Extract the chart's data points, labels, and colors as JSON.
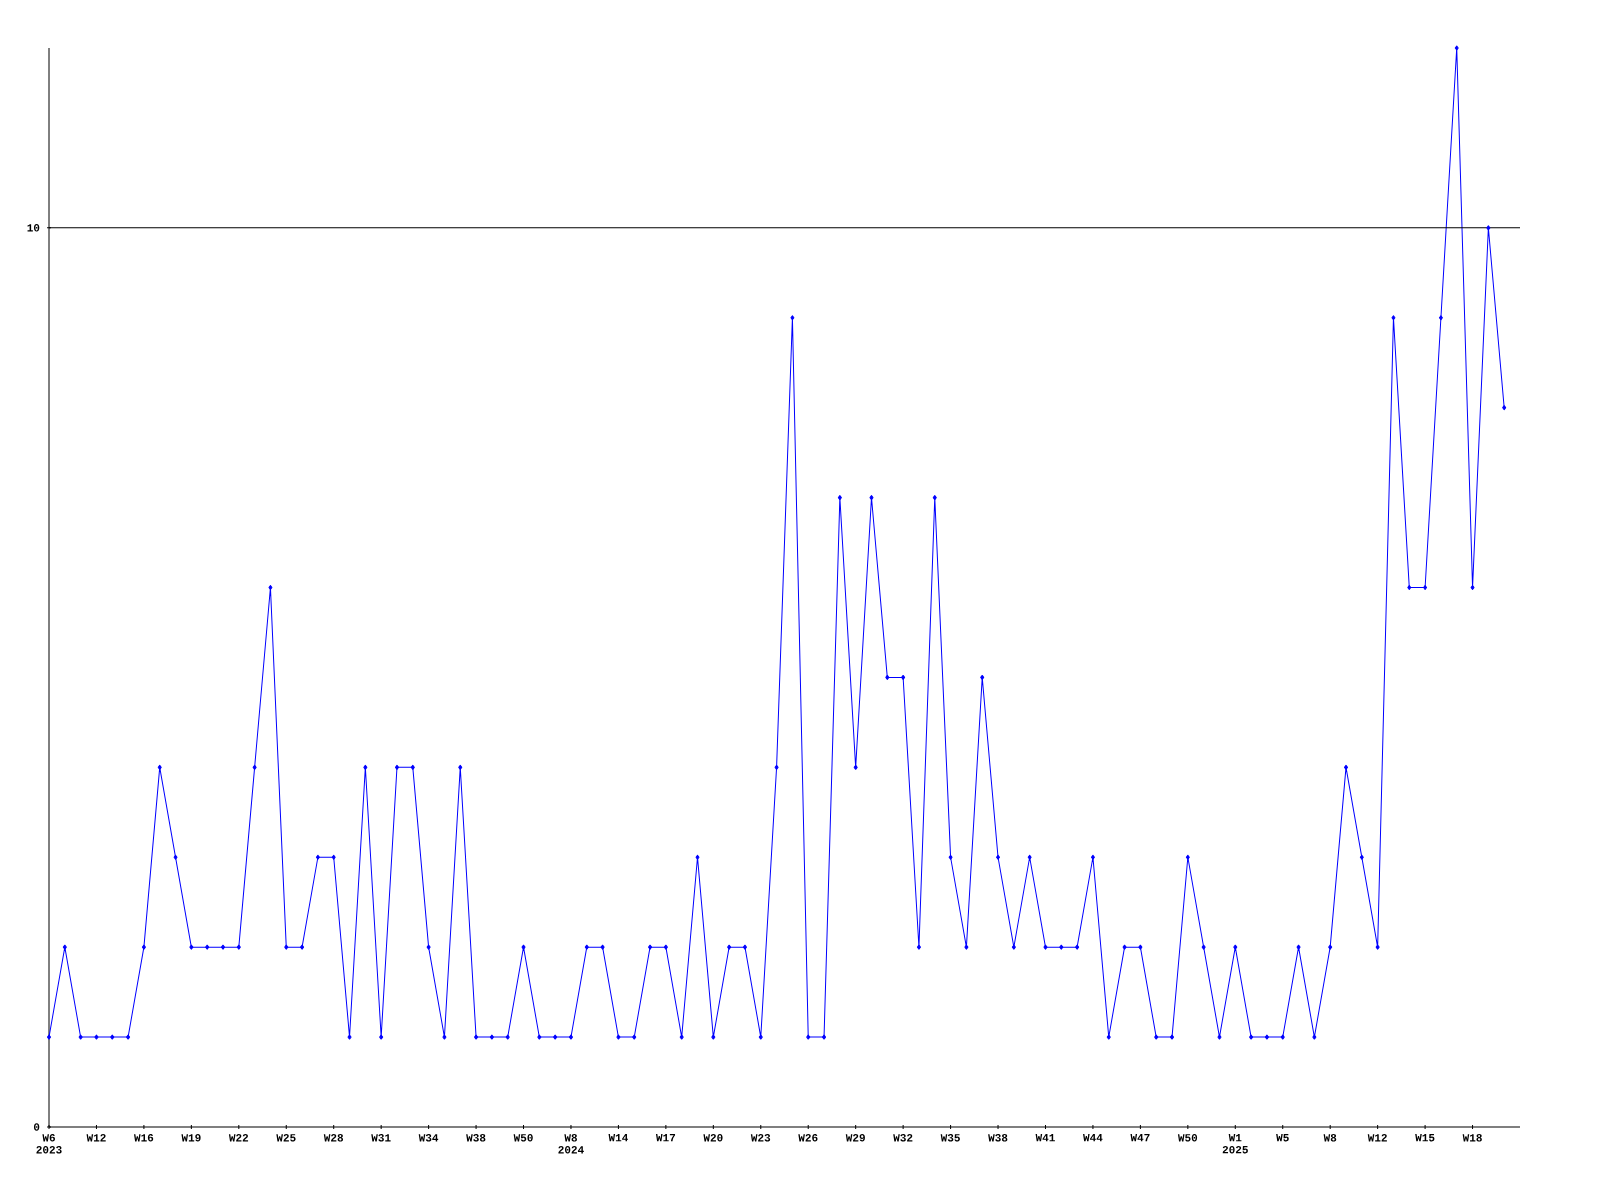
{
  "chart_data": {
    "type": "line",
    "categories": [
      "W6 2023",
      null,
      null,
      "W12",
      null,
      null,
      "W16",
      null,
      null,
      "W19",
      null,
      null,
      "W22",
      null,
      null,
      "W25",
      null,
      null,
      "W28",
      null,
      null,
      "W31",
      null,
      null,
      "W34",
      null,
      null,
      "W38",
      null,
      null,
      "W50",
      null,
      null,
      "W8 2024",
      null,
      null,
      "W14",
      null,
      null,
      "W17",
      null,
      null,
      "W20",
      null,
      null,
      "W23",
      null,
      null,
      "W26",
      null,
      null,
      "W29",
      null,
      null,
      "W32",
      null,
      null,
      "W35",
      null,
      null,
      "W38",
      null,
      null,
      "W41",
      null,
      null,
      "W44",
      null,
      null,
      "W47",
      null,
      null,
      "W50",
      null,
      null,
      "W1 2025",
      null,
      null,
      "W5",
      null,
      null,
      "W8",
      null,
      null,
      "W12",
      null,
      null,
      "W15",
      null,
      null,
      "W18",
      null,
      null
    ],
    "values": [
      1,
      2,
      1,
      1,
      1,
      1,
      2,
      4,
      3,
      2,
      2,
      2,
      2,
      4,
      6,
      2,
      2,
      3,
      3,
      1,
      4,
      1,
      4,
      4,
      2,
      1,
      4,
      1,
      1,
      1,
      2,
      1,
      1,
      1,
      2,
      2,
      1,
      1,
      2,
      2,
      1,
      3,
      1,
      2,
      2,
      1,
      4,
      9,
      1,
      1,
      7,
      4,
      7,
      5,
      5,
      2,
      7,
      3,
      2,
      5,
      3,
      2,
      3,
      2,
      2,
      2,
      3,
      1,
      2,
      2,
      1,
      1,
      3,
      2,
      1,
      2,
      1,
      1,
      1,
      2,
      1,
      2,
      4,
      3,
      2,
      9,
      6,
      6,
      9,
      12,
      6,
      10,
      8
    ],
    "color": "#0000ff",
    "marker": "diamond",
    "line_style": "solid",
    "grid": false,
    "ylim": [
      0,
      12
    ],
    "yticks": [
      0,
      10
    ],
    "ref_lines": [
      {
        "axis": "y",
        "value": 10,
        "color": "#000000"
      }
    ]
  }
}
